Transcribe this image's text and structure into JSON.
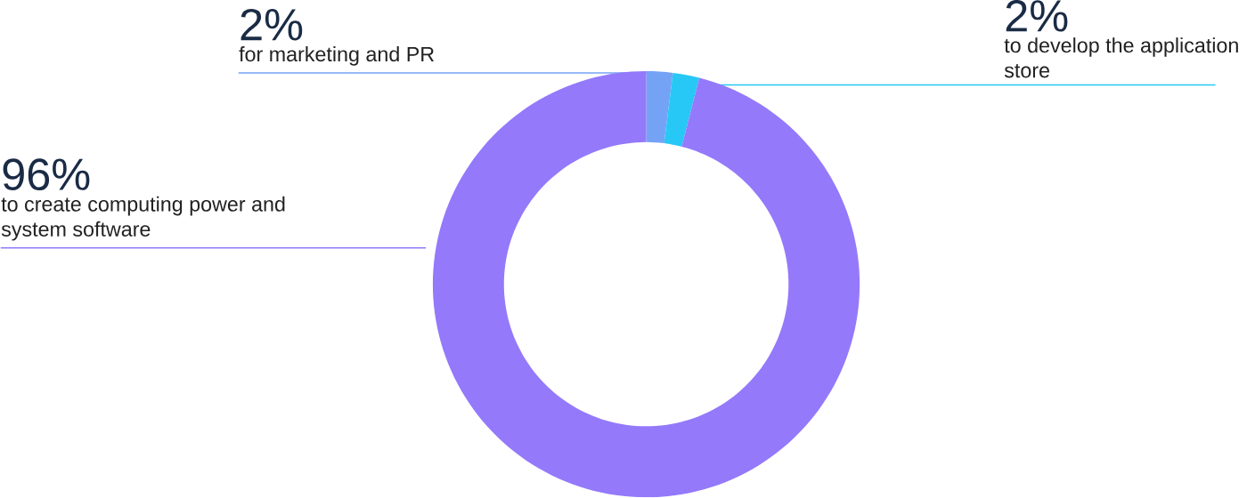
{
  "chart_data": {
    "type": "donut",
    "categories": [
      "for marketing and PR",
      "to develop the application store",
      "to create computing power and system software"
    ],
    "values": [
      2,
      2,
      96
    ],
    "value_labels": [
      "2%",
      "2%",
      "96%"
    ],
    "colors": [
      "#74a3f6",
      "#27c8f5",
      "#9479fb"
    ]
  }
}
